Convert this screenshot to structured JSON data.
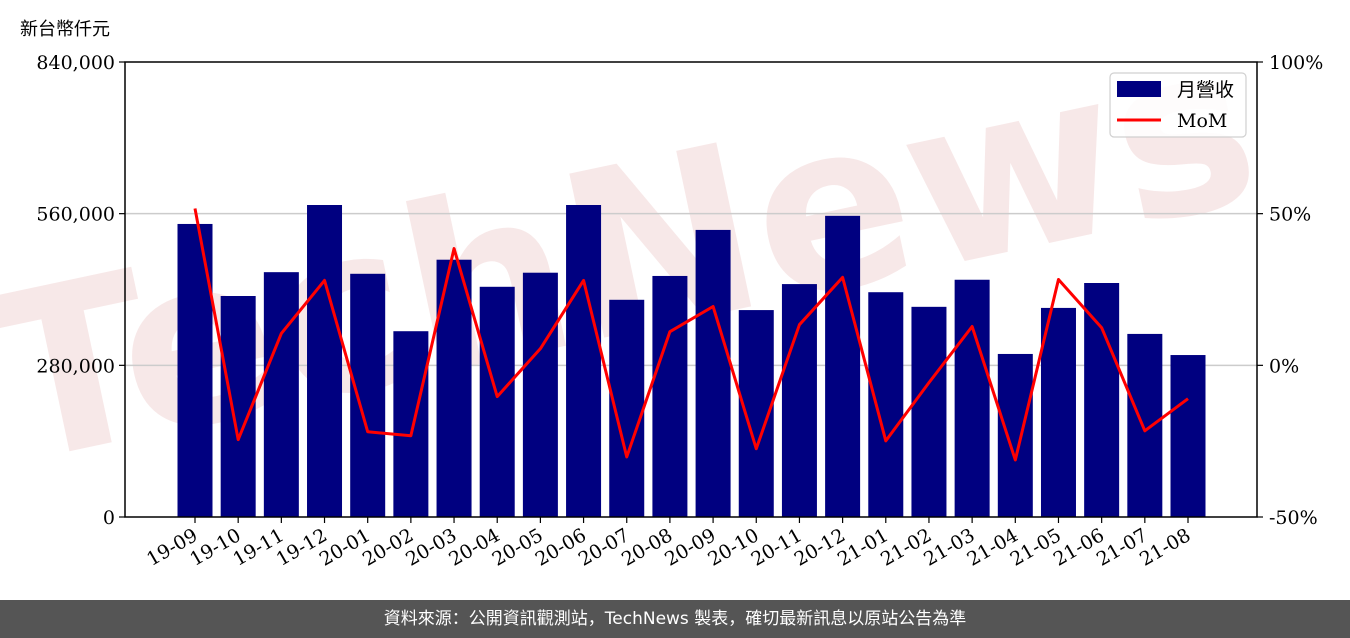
{
  "chart_data": {
    "type": "bar",
    "ylabel": "新台幣仟元",
    "categories": [
      "19-09",
      "19-10",
      "19-11",
      "19-12",
      "20-01",
      "20-02",
      "20-03",
      "20-04",
      "20-05",
      "20-06",
      "20-07",
      "20-08",
      "20-09",
      "20-10",
      "20-11",
      "20-12",
      "21-01",
      "21-02",
      "21-03",
      "21-04",
      "21-05",
      "21-06",
      "21-07",
      "21-08"
    ],
    "series": [
      {
        "name": "月營收",
        "type": "bar",
        "axis": "left",
        "color": "#000080",
        "values": [
          541000,
          408000,
          452000,
          576000,
          449000,
          343000,
          475000,
          425000,
          451000,
          576000,
          401000,
          445000,
          530000,
          382000,
          430000,
          556000,
          415000,
          388000,
          438000,
          301000,
          386000,
          432000,
          338000,
          299000
        ]
      },
      {
        "name": "MoM",
        "type": "line",
        "axis": "right",
        "color": "#ff0000",
        "values": [
          51.7,
          -24.5,
          10.5,
          28.0,
          -21.9,
          -23.2,
          38.5,
          -10.3,
          5.5,
          28.0,
          -30.2,
          11.1,
          19.4,
          -27.5,
          13.4,
          29.0,
          -24.9,
          -5.7,
          12.8,
          -31.2,
          28.3,
          12.4,
          -21.6,
          -11.0
        ]
      }
    ],
    "ylim": [
      0,
      840000
    ],
    "yticks": [
      "0",
      "280,000",
      "560,000",
      "840,000"
    ],
    "ylim_right": [
      -50,
      100
    ],
    "yticks_right": [
      "-50%",
      "0%",
      "50%",
      "100%"
    ],
    "grid": "horizontal",
    "legend": "top-right"
  },
  "footer": "資料來源：公開資訊觀測站，TechNews 製表，確切最新訊息以原站公告為準",
  "watermark": "TechNews"
}
